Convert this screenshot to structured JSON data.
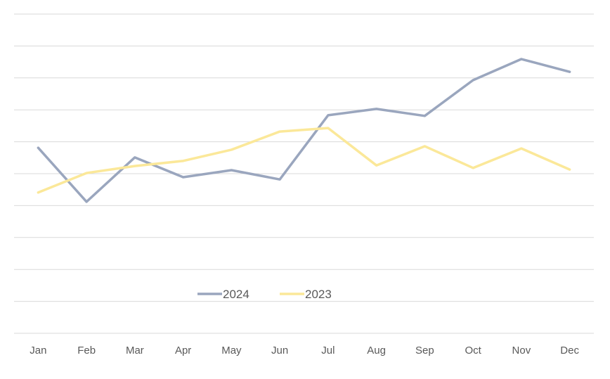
{
  "chart_data": {
    "type": "line",
    "title": "",
    "xlabel": "",
    "ylabel": "",
    "categories": [
      "Jan",
      "Feb",
      "Mar",
      "Apr",
      "May",
      "Jun",
      "Jul",
      "Aug",
      "Sep",
      "Oct",
      "Nov",
      "Dec"
    ],
    "ylim": [
      0,
      10
    ],
    "y_tick_labels_shown": false,
    "grid": true,
    "legend_placement": "bottom-center",
    "series": [
      {
        "name": "2024",
        "color": "#9aa6be",
        "values": [
          5.81,
          4.12,
          5.51,
          4.89,
          5.11,
          4.82,
          6.83,
          7.03,
          6.81,
          7.93,
          8.59,
          8.19
        ]
      },
      {
        "name": "2023",
        "color": "#fbe899",
        "values": [
          4.41,
          5.02,
          5.24,
          5.4,
          5.75,
          6.32,
          6.43,
          5.26,
          5.86,
          5.18,
          5.79,
          5.13
        ]
      }
    ]
  }
}
